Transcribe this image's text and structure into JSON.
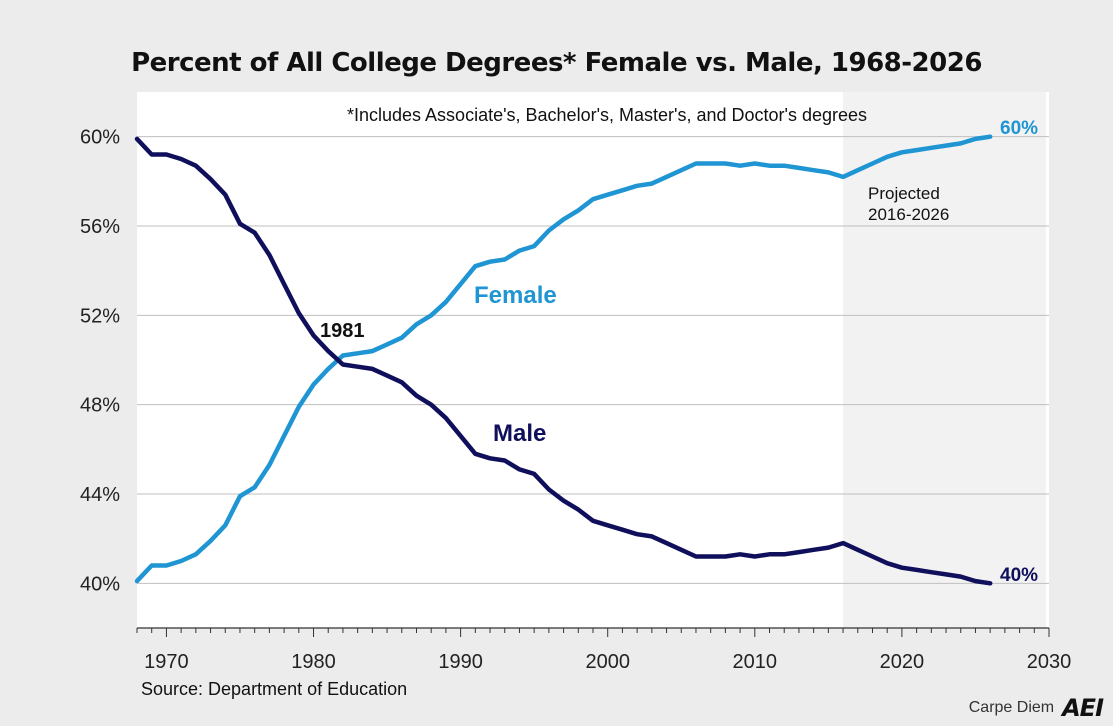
{
  "title": "Percent of All College Degrees* Female vs. Male, 1968-2026",
  "footnote": "*Includes Associate's, Bachelor's, Master's, and Doctor's degrees",
  "source": "Source: Department of Education",
  "brand": {
    "text": "Carpe Diem",
    "logo": "AEI"
  },
  "colors": {
    "female": "#1f95d3",
    "male": "#0f0f5c",
    "plot_bg": "#ffffff",
    "page_bg": "#ececec",
    "projection_shade": "#f2f2f2",
    "grid": "#bfbfbf"
  },
  "chart_data": {
    "type": "line",
    "title": "Percent of All College Degrees* Female vs. Male, 1968-2026",
    "xlabel": "",
    "ylabel": "",
    "xlim": [
      1968,
      2030
    ],
    "ylim": [
      38,
      62
    ],
    "x_ticks": [
      1970,
      1980,
      1990,
      2000,
      2010,
      2020,
      2030
    ],
    "y_ticks": [
      40,
      44,
      48,
      52,
      56,
      60
    ],
    "y_tick_labels": [
      "40%",
      "44%",
      "48%",
      "52%",
      "56%",
      "60%"
    ],
    "grid": true,
    "projection": {
      "start": 2016,
      "end": 2026,
      "label_line1": "Projected",
      "label_line2": "2016-2026"
    },
    "annotation": {
      "text": "1981",
      "x": 1981,
      "y": 50.0
    },
    "x": [
      1968,
      1969,
      1970,
      1971,
      1972,
      1973,
      1974,
      1975,
      1976,
      1977,
      1978,
      1979,
      1980,
      1981,
      1982,
      1983,
      1984,
      1985,
      1986,
      1987,
      1988,
      1989,
      1990,
      1991,
      1992,
      1993,
      1994,
      1995,
      1996,
      1997,
      1998,
      1999,
      2000,
      2001,
      2002,
      2003,
      2004,
      2005,
      2006,
      2007,
      2008,
      2009,
      2010,
      2011,
      2012,
      2013,
      2014,
      2015,
      2016,
      2017,
      2018,
      2019,
      2020,
      2021,
      2022,
      2023,
      2024,
      2025,
      2026
    ],
    "series": [
      {
        "name": "Female",
        "label": "Female",
        "end_label": "60%",
        "values": [
          40.1,
          40.8,
          40.8,
          41.0,
          41.3,
          41.9,
          42.6,
          43.9,
          44.3,
          45.3,
          46.6,
          47.9,
          48.9,
          49.6,
          50.2,
          50.3,
          50.4,
          50.7,
          51.0,
          51.6,
          52.0,
          52.6,
          53.4,
          54.2,
          54.4,
          54.5,
          54.9,
          55.1,
          55.8,
          56.3,
          56.7,
          57.2,
          57.4,
          57.6,
          57.8,
          57.9,
          58.2,
          58.5,
          58.8,
          58.8,
          58.8,
          58.7,
          58.8,
          58.7,
          58.7,
          58.6,
          58.5,
          58.4,
          58.2,
          58.5,
          58.8,
          59.1,
          59.3,
          59.4,
          59.5,
          59.6,
          59.7,
          59.9,
          60.0
        ]
      },
      {
        "name": "Male",
        "label": "Male",
        "end_label": "40%",
        "values": [
          59.9,
          59.2,
          59.2,
          59.0,
          58.7,
          58.1,
          57.4,
          56.1,
          55.7,
          54.7,
          53.4,
          52.1,
          51.1,
          50.4,
          49.8,
          49.7,
          49.6,
          49.3,
          49.0,
          48.4,
          48.0,
          47.4,
          46.6,
          45.8,
          45.6,
          45.5,
          45.1,
          44.9,
          44.2,
          43.7,
          43.3,
          42.8,
          42.6,
          42.4,
          42.2,
          42.1,
          41.8,
          41.5,
          41.2,
          41.2,
          41.2,
          41.3,
          41.2,
          41.3,
          41.3,
          41.4,
          41.5,
          41.6,
          41.8,
          41.5,
          41.2,
          40.9,
          40.7,
          40.6,
          40.5,
          40.4,
          40.3,
          40.1,
          40.0
        ]
      }
    ]
  }
}
